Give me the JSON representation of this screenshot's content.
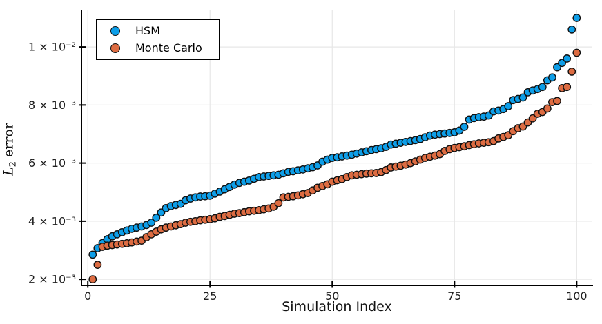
{
  "figure": {
    "background": "#ffffff",
    "grid_color": "#e7e7e7",
    "axis_color": "#000000",
    "tick_label_color": "#1f1f1f"
  },
  "legend": {
    "items": [
      {
        "label": "HSM",
        "marker": "circle-icon",
        "color": "#0d9ee8"
      },
      {
        "label": "Monte Carlo",
        "marker": "circle-icon",
        "color": "#dd6c42"
      }
    ]
  },
  "chart_data": {
    "type": "scatter",
    "title": "",
    "xlabel": "Simulation Index",
    "ylabel": "L₂ error",
    "ylabel_parts": {
      "var": "L",
      "sub": "2",
      "rest": "error"
    },
    "x_ticks": [
      {
        "v": 0,
        "label": "0"
      },
      {
        "v": 25,
        "label": "25"
      },
      {
        "v": 50,
        "label": "50"
      },
      {
        "v": 75,
        "label": "75"
      },
      {
        "v": 100,
        "label": "100"
      }
    ],
    "y_ticks": [
      {
        "v": 2,
        "label": "2 × 10⁻³"
      },
      {
        "v": 4,
        "label": "4 × 10⁻³"
      },
      {
        "v": 6,
        "label": "6 × 10⁻³"
      },
      {
        "v": 8,
        "label": "8 × 10⁻³"
      },
      {
        "v": 10,
        "label": "1 × 10⁻²"
      }
    ],
    "xlim": [
      -1.3,
      103.2
    ],
    "ylim_e3": [
      1.79,
      11.26
    ],
    "grid": true,
    "legend_position": "top-left",
    "x_is_index_starting_at": 1,
    "y_unit": "1e-3",
    "series": [
      {
        "name": "HSM",
        "color": "#0d9ee8",
        "stroke": "#111111",
        "values_e3": [
          2.85,
          3.07,
          3.25,
          3.38,
          3.48,
          3.55,
          3.62,
          3.68,
          3.74,
          3.78,
          3.82,
          3.87,
          3.95,
          4.12,
          4.3,
          4.45,
          4.52,
          4.56,
          4.6,
          4.72,
          4.78,
          4.82,
          4.85,
          4.86,
          4.88,
          4.95,
          5.02,
          5.1,
          5.18,
          5.26,
          5.32,
          5.36,
          5.4,
          5.46,
          5.52,
          5.54,
          5.56,
          5.58,
          5.6,
          5.65,
          5.7,
          5.72,
          5.75,
          5.78,
          5.82,
          5.86,
          5.92,
          6.05,
          6.12,
          6.18,
          6.2,
          6.23,
          6.26,
          6.29,
          6.33,
          6.37,
          6.41,
          6.45,
          6.48,
          6.51,
          6.56,
          6.64,
          6.67,
          6.7,
          6.73,
          6.76,
          6.79,
          6.83,
          6.89,
          6.95,
          6.98,
          7.0,
          7.02,
          7.04,
          7.06,
          7.12,
          7.25,
          7.5,
          7.55,
          7.58,
          7.6,
          7.64,
          7.78,
          7.81,
          7.86,
          7.96,
          8.17,
          8.21,
          8.26,
          8.44,
          8.5,
          8.55,
          8.62,
          8.85,
          8.95,
          9.3,
          9.45,
          9.6,
          10.6,
          11.0
        ]
      },
      {
        "name": "Monte Carlo",
        "color": "#dd6c42",
        "stroke": "#111111",
        "values_e3": [
          2.0,
          2.5,
          3.12,
          3.16,
          3.18,
          3.2,
          3.22,
          3.24,
          3.27,
          3.3,
          3.33,
          3.45,
          3.55,
          3.64,
          3.72,
          3.78,
          3.82,
          3.86,
          3.9,
          3.95,
          3.98,
          4.0,
          4.03,
          4.05,
          4.07,
          4.1,
          4.15,
          4.18,
          4.22,
          4.26,
          4.28,
          4.31,
          4.34,
          4.36,
          4.38,
          4.41,
          4.44,
          4.5,
          4.62,
          4.82,
          4.84,
          4.86,
          4.89,
          4.93,
          4.97,
          5.06,
          5.15,
          5.21,
          5.27,
          5.36,
          5.41,
          5.45,
          5.52,
          5.58,
          5.6,
          5.62,
          5.64,
          5.65,
          5.66,
          5.69,
          5.76,
          5.85,
          5.88,
          5.91,
          5.95,
          6.0,
          6.06,
          6.12,
          6.18,
          6.22,
          6.26,
          6.31,
          6.42,
          6.48,
          6.52,
          6.55,
          6.58,
          6.62,
          6.65,
          6.68,
          6.7,
          6.72,
          6.76,
          6.85,
          6.9,
          6.96,
          7.1,
          7.2,
          7.26,
          7.4,
          7.54,
          7.7,
          7.76,
          7.88,
          8.1,
          8.14,
          8.58,
          8.62,
          9.15,
          9.8
        ]
      }
    ]
  }
}
